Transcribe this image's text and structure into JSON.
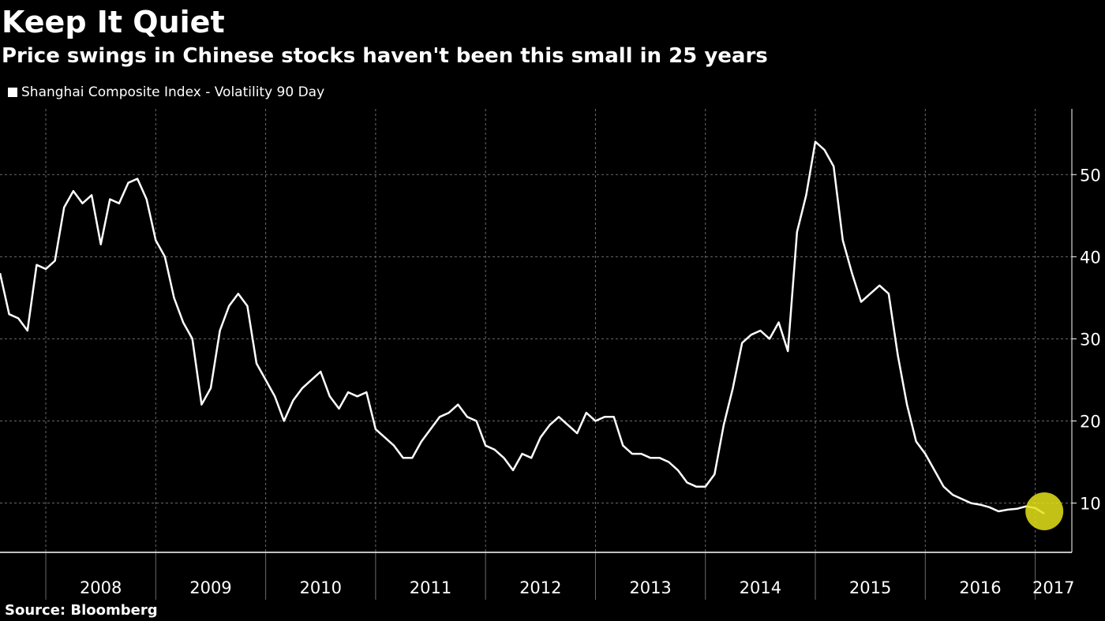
{
  "title": "Keep It Quiet",
  "subtitle": "Price swings in Chinese stocks haven't been this small in 25 years",
  "source": "Source: Bloomberg",
  "colors": {
    "background": "#000000",
    "line": "#ffffff",
    "grid": "#6a6a6a",
    "highlight": "#e5e21a"
  },
  "chart_data": {
    "type": "line",
    "series": [
      {
        "name": "Shanghai Composite Index - Volatility 90 Day",
        "points": [
          [
            "2007-08",
            38
          ],
          [
            "2007-09",
            33
          ],
          [
            "2007-10",
            32.5
          ],
          [
            "2007-11",
            31
          ],
          [
            "2007-12",
            39
          ],
          [
            "2008-01",
            38.5
          ],
          [
            "2008-02",
            39.5
          ],
          [
            "2008-03",
            46
          ],
          [
            "2008-04",
            48
          ],
          [
            "2008-05",
            46.5
          ],
          [
            "2008-06",
            47.5
          ],
          [
            "2008-07",
            41.5
          ],
          [
            "2008-08",
            47
          ],
          [
            "2008-09",
            46.5
          ],
          [
            "2008-10",
            49
          ],
          [
            "2008-11",
            49.5
          ],
          [
            "2008-12",
            47
          ],
          [
            "2009-01",
            42
          ],
          [
            "2009-02",
            40
          ],
          [
            "2009-03",
            35
          ],
          [
            "2009-04",
            32
          ],
          [
            "2009-05",
            30
          ],
          [
            "2009-06",
            22
          ],
          [
            "2009-07",
            24
          ],
          [
            "2009-08",
            31
          ],
          [
            "2009-09",
            34
          ],
          [
            "2009-10",
            35.5
          ],
          [
            "2009-11",
            34
          ],
          [
            "2009-12",
            27
          ],
          [
            "2010-01",
            25
          ],
          [
            "2010-02",
            23
          ],
          [
            "2010-03",
            20
          ],
          [
            "2010-04",
            22.5
          ],
          [
            "2010-05",
            24
          ],
          [
            "2010-06",
            25
          ],
          [
            "2010-07",
            26
          ],
          [
            "2010-08",
            23
          ],
          [
            "2010-09",
            21.5
          ],
          [
            "2010-10",
            23.5
          ],
          [
            "2010-11",
            23
          ],
          [
            "2010-12",
            23.5
          ],
          [
            "2011-01",
            19
          ],
          [
            "2011-02",
            18
          ],
          [
            "2011-03",
            17
          ],
          [
            "2011-04",
            15.5
          ],
          [
            "2011-05",
            15.5
          ],
          [
            "2011-06",
            17.5
          ],
          [
            "2011-07",
            19
          ],
          [
            "2011-08",
            20.5
          ],
          [
            "2011-09",
            21
          ],
          [
            "2011-10",
            22
          ],
          [
            "2011-11",
            20.5
          ],
          [
            "2011-12",
            20
          ],
          [
            "2012-01",
            17
          ],
          [
            "2012-02",
            16.5
          ],
          [
            "2012-03",
            15.5
          ],
          [
            "2012-04",
            14
          ],
          [
            "2012-05",
            16
          ],
          [
            "2012-06",
            15.5
          ],
          [
            "2012-07",
            18
          ],
          [
            "2012-08",
            19.5
          ],
          [
            "2012-09",
            20.5
          ],
          [
            "2012-10",
            19.5
          ],
          [
            "2012-11",
            18.5
          ],
          [
            "2012-12",
            21
          ],
          [
            "2013-01",
            20
          ],
          [
            "2013-02",
            20.5
          ],
          [
            "2013-03",
            20.5
          ],
          [
            "2013-04",
            17
          ],
          [
            "2013-05",
            16
          ],
          [
            "2013-06",
            16
          ],
          [
            "2013-07",
            15.5
          ],
          [
            "2013-08",
            15.5
          ],
          [
            "2013-09",
            15
          ],
          [
            "2013-10",
            14
          ],
          [
            "2013-11",
            12.5
          ],
          [
            "2013-12",
            12
          ],
          [
            "2014-01",
            12
          ],
          [
            "2014-02",
            13.5
          ],
          [
            "2014-03",
            19.5
          ],
          [
            "2014-04",
            24
          ],
          [
            "2014-05",
            29.5
          ],
          [
            "2014-06",
            30.5
          ],
          [
            "2014-07",
            31
          ],
          [
            "2014-08",
            30
          ],
          [
            "2014-09",
            32
          ],
          [
            "2014-10",
            28.5
          ],
          [
            "2014-11",
            43
          ],
          [
            "2014-12",
            47.5
          ],
          [
            "2015-01",
            54
          ],
          [
            "2015-02",
            53
          ],
          [
            "2015-03",
            51
          ],
          [
            "2015-04",
            42
          ],
          [
            "2015-05",
            38
          ],
          [
            "2015-06",
            34.5
          ],
          [
            "2015-07",
            35.5
          ],
          [
            "2015-08",
            36.5
          ],
          [
            "2015-09",
            35.5
          ],
          [
            "2015-10",
            28
          ],
          [
            "2015-11",
            22
          ],
          [
            "2015-12",
            17.5
          ],
          [
            "2016-01",
            16
          ],
          [
            "2016-02",
            14
          ],
          [
            "2016-03",
            12
          ],
          [
            "2016-04",
            11
          ],
          [
            "2016-05",
            10.5
          ],
          [
            "2016-06",
            10
          ],
          [
            "2016-07",
            9.8
          ],
          [
            "2016-08",
            9.5
          ],
          [
            "2016-09",
            9
          ],
          [
            "2016-10",
            9.2
          ],
          [
            "2016-11",
            9.3
          ],
          [
            "2016-12",
            9.6
          ],
          [
            "2017-01",
            9.4
          ],
          [
            "2017-02",
            8.7
          ]
        ]
      }
    ],
    "x_range": [
      "2007-08",
      "2017-05"
    ],
    "x_ticks": [
      "2008",
      "2009",
      "2010",
      "2011",
      "2012",
      "2013",
      "2014",
      "2015",
      "2016",
      "2017"
    ],
    "ylim": [
      4,
      58
    ],
    "y_ticks": [
      10,
      20,
      30,
      40,
      50
    ],
    "y_axis_side": "right",
    "grid": true,
    "legend_position": "top-left",
    "highlight": {
      "x": "2017-02",
      "y": 9
    }
  }
}
